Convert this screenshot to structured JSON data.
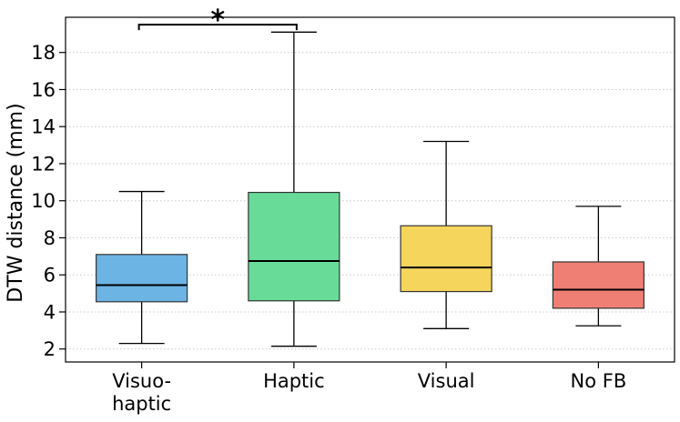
{
  "chart_data": {
    "type": "box",
    "title": "",
    "xlabel": "",
    "ylabel": "DTW distance (mm)",
    "ylim": [
      1.3,
      19.9
    ],
    "yticks": [
      2,
      4,
      6,
      8,
      10,
      12,
      14,
      16,
      18
    ],
    "grid": "horizontal-dotted",
    "categories": [
      {
        "label_lines": [
          "Visuo-",
          "haptic"
        ],
        "color": "#6cb4e4",
        "stats": {
          "whisker_low": 2.3,
          "q1": 4.55,
          "median": 5.45,
          "q3": 7.1,
          "whisker_high": 10.5
        }
      },
      {
        "label_lines": [
          "Haptic"
        ],
        "color": "#69db98",
        "stats": {
          "whisker_low": 2.15,
          "q1": 4.6,
          "median": 6.75,
          "q3": 10.45,
          "whisker_high": 19.1
        }
      },
      {
        "label_lines": [
          "Visual"
        ],
        "color": "#f6d55c",
        "stats": {
          "whisker_low": 3.1,
          "q1": 5.1,
          "median": 6.4,
          "q3": 8.65,
          "whisker_high": 13.2
        }
      },
      {
        "label_lines": [
          "No FB"
        ],
        "color": "#ef7f74",
        "stats": {
          "whisker_low": 3.25,
          "q1": 4.2,
          "median": 5.2,
          "q3": 6.7,
          "whisker_high": 9.7
        }
      }
    ],
    "annotations": [
      {
        "type": "significance",
        "between": [
          0,
          1
        ],
        "label": "*",
        "y": 19.5
      }
    ]
  }
}
